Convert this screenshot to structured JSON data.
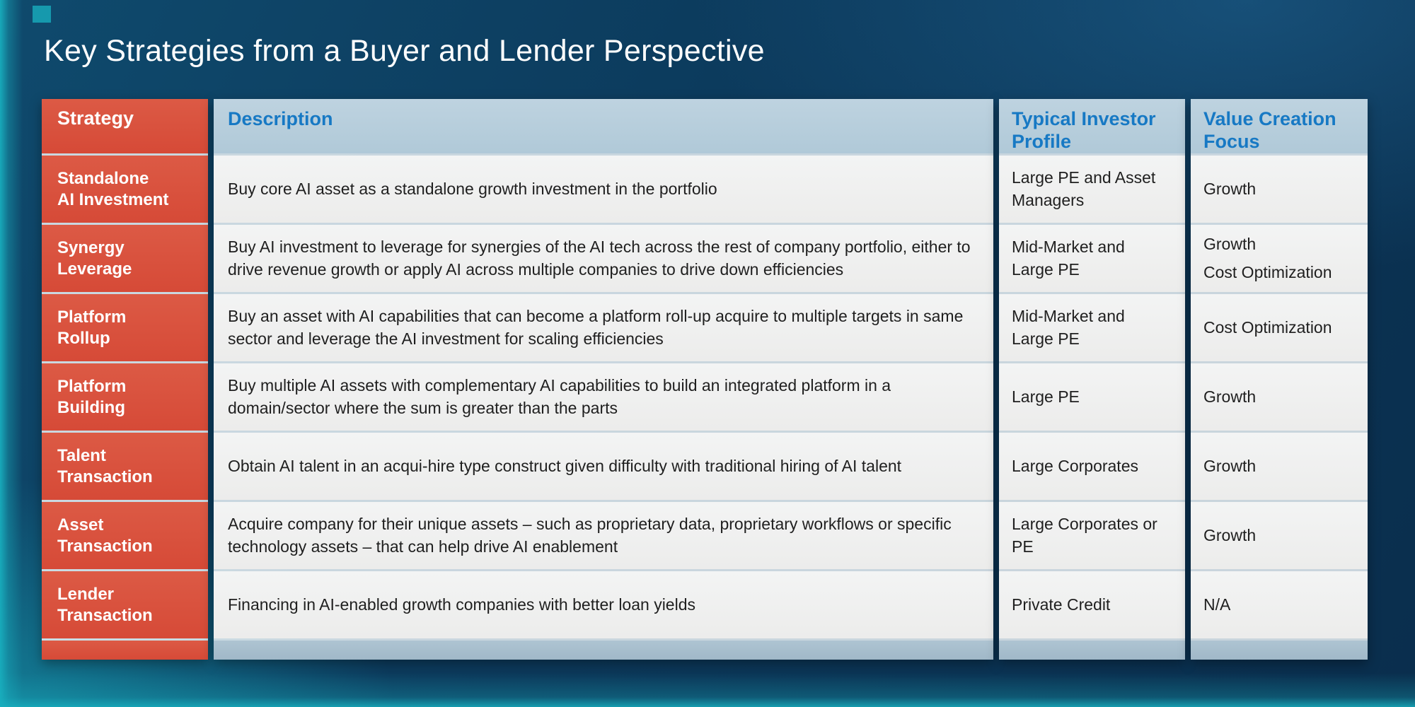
{
  "slide": {
    "title": "Key Strategies from a Buyer and Lender Perspective"
  },
  "table": {
    "headers": [
      "Strategy",
      "Description",
      "Typical Investor Profile",
      "Value Creation Focus"
    ],
    "rows": [
      {
        "strategy": "Standalone\nAI Investment",
        "description": "Buy core AI asset as a standalone growth investment in the portfolio",
        "investor": "Large PE and Asset\nManagers",
        "value_focus": "Growth"
      },
      {
        "strategy": "Synergy\nLeverage",
        "description": "Buy AI investment to leverage for synergies of the AI tech across the rest of company portfolio, either to drive revenue growth or apply AI across multiple companies to drive down efficiencies",
        "investor": "Mid-Market and\nLarge PE",
        "value_focus": "Growth\nCost Optimization"
      },
      {
        "strategy": "Platform\nRollup",
        "description": "Buy an asset with AI capabilities that can become a platform roll-up acquire to multiple targets in same sector and leverage the AI investment for scaling efficiencies",
        "investor": "Mid-Market and\nLarge PE",
        "value_focus": "Cost Optimization"
      },
      {
        "strategy": "Platform\nBuilding",
        "description": "Buy multiple AI assets with complementary AI capabilities to build an integrated platform in a domain/sector where the sum is greater than the parts",
        "investor": "Large PE",
        "value_focus": "Growth"
      },
      {
        "strategy": "Talent\nTransaction",
        "description": "Obtain AI talent in an acqui-hire type construct given difficulty with traditional hiring of AI talent",
        "investor": "Large Corporates",
        "value_focus": "Growth"
      },
      {
        "strategy": "Asset\nTransaction",
        "description": "Acquire company for their unique assets – such as proprietary data, proprietary workflows or specific technology assets –  that can help drive AI enablement",
        "investor": "Large Corporates or\nPE",
        "value_focus": "Growth"
      },
      {
        "strategy": "Lender\nTransaction",
        "description": "Financing in AI-enabled growth companies with better loan yields",
        "investor": "Private Credit",
        "value_focus": "N/A"
      }
    ]
  },
  "colors": {
    "strategy_accent": "#d9503b",
    "header_bg": "#b7cedd",
    "header_text": "#1779c4",
    "body_bg": "#f0f0ef",
    "footer_bg": "#a6becd",
    "background_navy": "#0b3050",
    "background_teal": "#18aebe",
    "title_text": "#ffffff"
  }
}
